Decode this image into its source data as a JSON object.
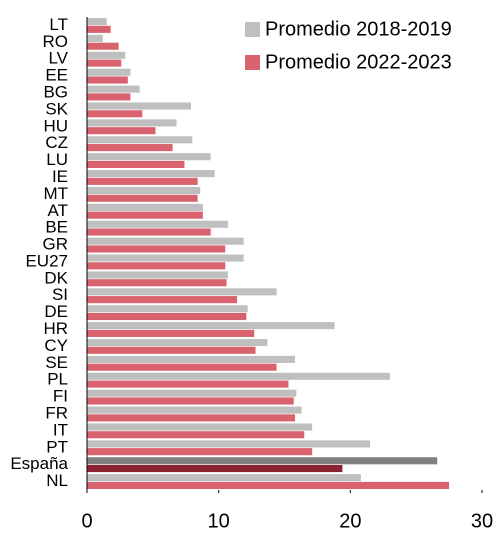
{
  "chart_data": {
    "type": "bar",
    "orientation": "horizontal",
    "categories": [
      "LT",
      "RO",
      "LV",
      "EE",
      "BG",
      "SK",
      "HU",
      "CZ",
      "LU",
      "IE",
      "MT",
      "AT",
      "BE",
      "GR",
      "EU27",
      "DK",
      "SI",
      "DE",
      "HR",
      "CY",
      "SE",
      "PL",
      "FI",
      "FR",
      "IT",
      "PT",
      "España",
      "NL"
    ],
    "series": [
      {
        "name": "Promedio 2018-2019",
        "color": "#bfbfbf",
        "highlight_color": "#7f7f7f",
        "values": [
          1.5,
          1.2,
          2.9,
          3.3,
          4.0,
          7.9,
          6.8,
          8.0,
          9.4,
          9.7,
          8.6,
          8.8,
          10.7,
          11.9,
          11.9,
          10.7,
          14.4,
          12.2,
          18.8,
          13.7,
          15.8,
          23.0,
          15.9,
          16.3,
          17.1,
          21.5,
          26.6,
          20.8
        ]
      },
      {
        "name": "Promedio 2022-2023",
        "color": "#d9626f",
        "highlight_color": "#8b2332",
        "values": [
          1.8,
          2.4,
          2.6,
          3.1,
          3.3,
          4.2,
          5.2,
          6.5,
          7.4,
          8.4,
          8.4,
          8.8,
          9.4,
          10.5,
          10.5,
          10.6,
          11.4,
          12.1,
          12.7,
          12.8,
          14.4,
          15.3,
          15.7,
          15.8,
          16.5,
          17.1,
          19.4,
          27.5
        ]
      }
    ],
    "highlight_index": 26,
    "xlim": [
      0,
      30
    ],
    "xticks": [
      0,
      10,
      20,
      30
    ],
    "legend": "top-right"
  }
}
